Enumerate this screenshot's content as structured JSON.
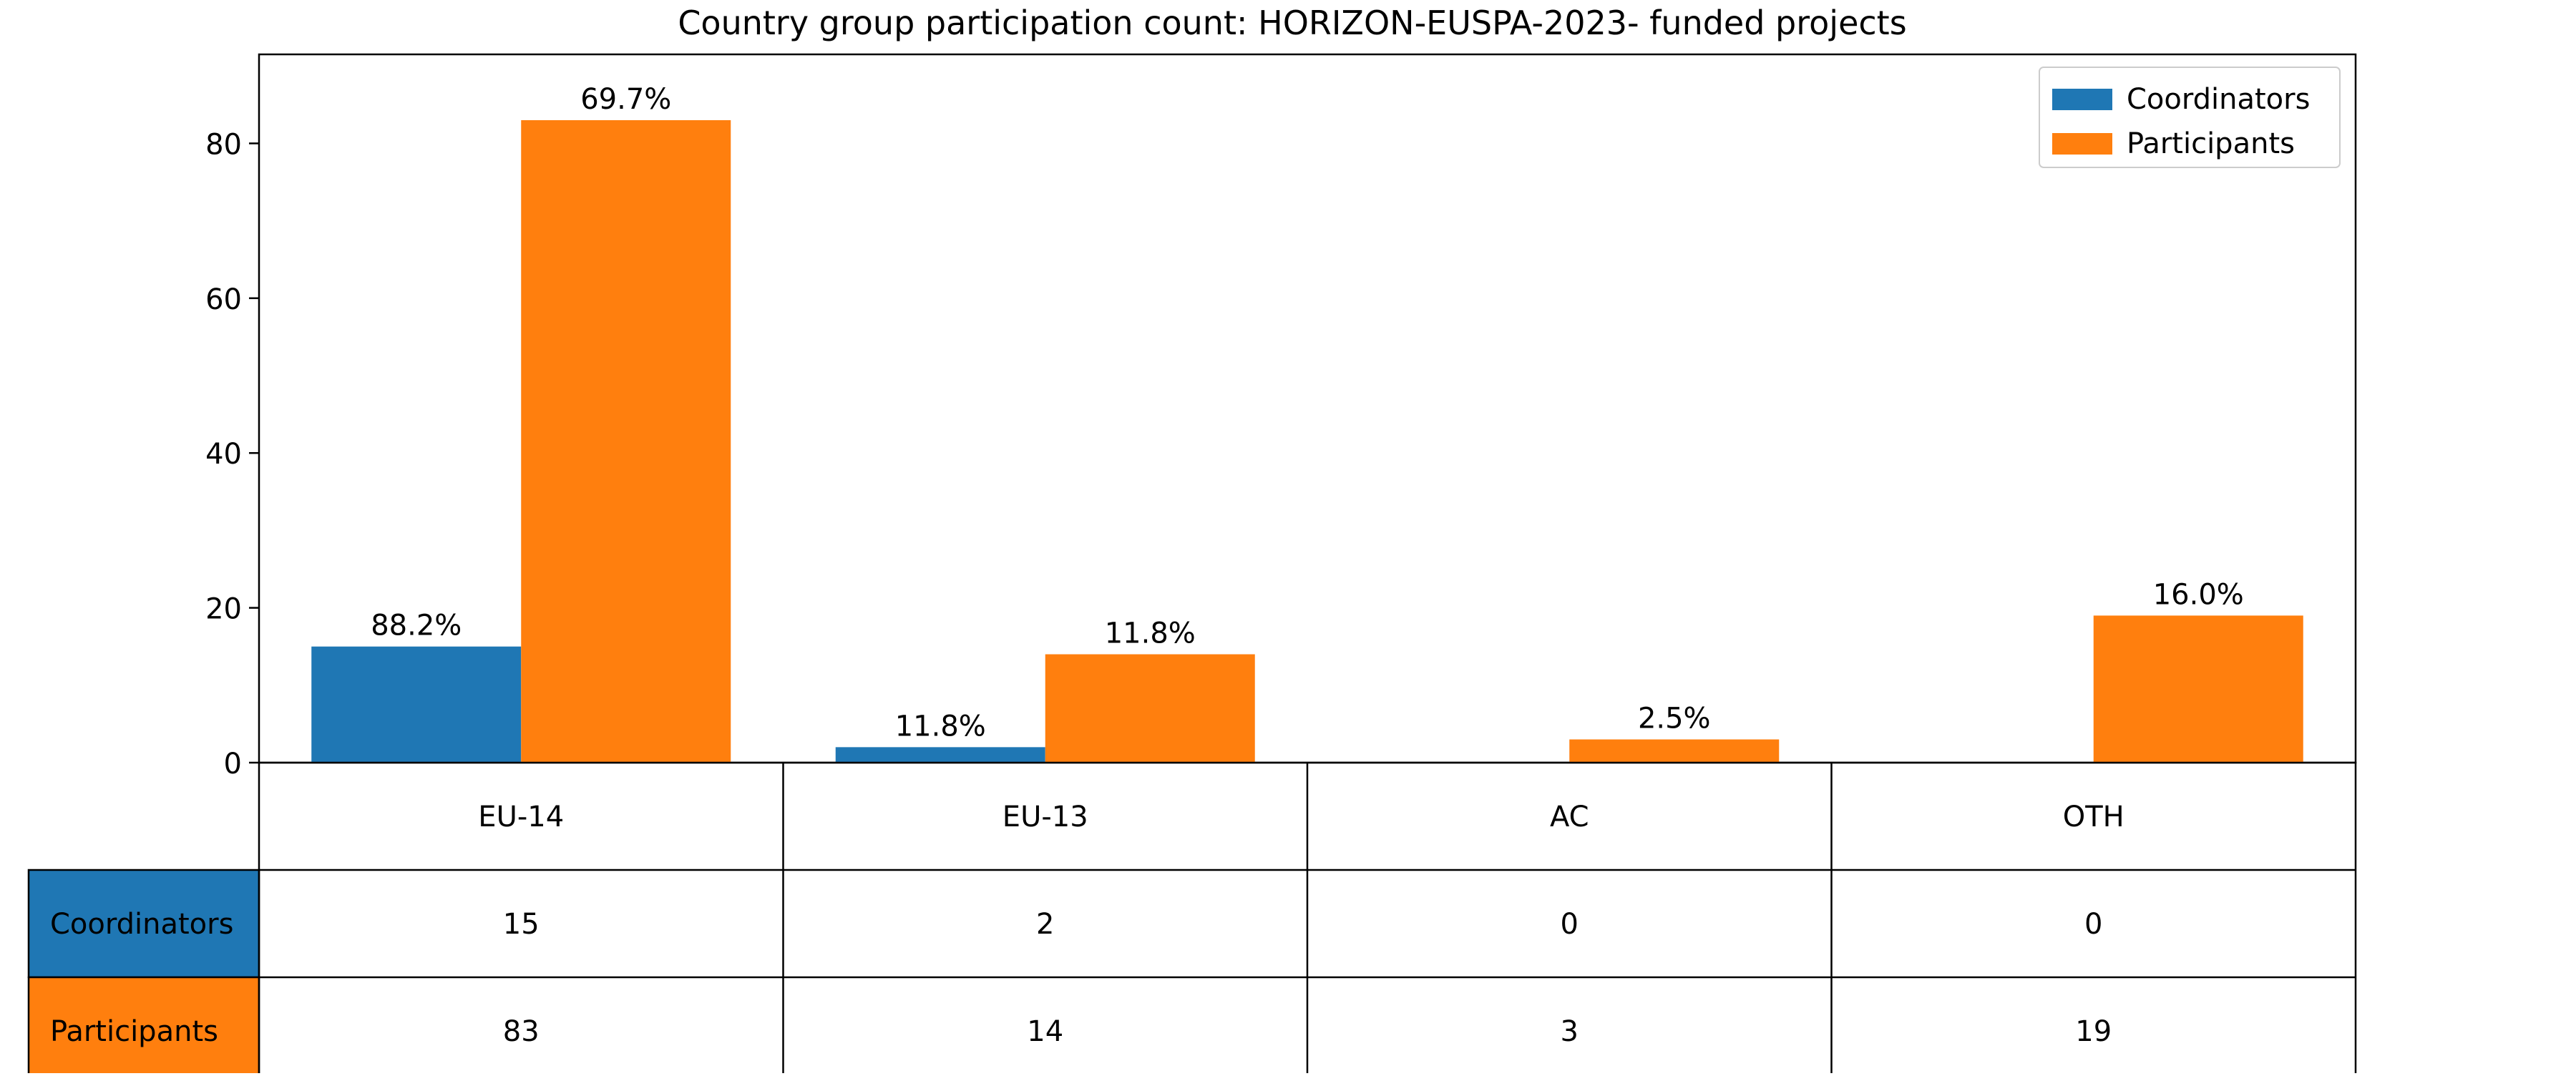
{
  "chart_data": {
    "type": "bar",
    "title": "Country group participation count: HORIZON-EUSPA-2023- funded projects",
    "categories": [
      "EU-14",
      "EU-13",
      "AC",
      "OTH"
    ],
    "series": [
      {
        "name": "Coordinators",
        "color": "#1f77b4",
        "values": [
          15,
          2,
          0,
          0
        ],
        "labels": [
          "88.2%",
          "11.8%",
          "",
          ""
        ]
      },
      {
        "name": "Participants",
        "color": "#ff7f0e",
        "values": [
          83,
          14,
          3,
          19
        ],
        "labels": [
          "69.7%",
          "11.8%",
          "2.5%",
          "16.0%"
        ]
      }
    ],
    "ylim": [
      0,
      91.5
    ],
    "yticks": [
      0,
      20,
      40,
      60,
      80
    ],
    "grid": false,
    "legend": "top-right",
    "xlabel": "",
    "ylabel": "",
    "table": {
      "rows": [
        {
          "label": "Coordinators",
          "cells": [
            "15",
            "2",
            "0",
            "0"
          ]
        },
        {
          "label": "Participants",
          "cells": [
            "83",
            "14",
            "3",
            "19"
          ]
        }
      ]
    }
  }
}
